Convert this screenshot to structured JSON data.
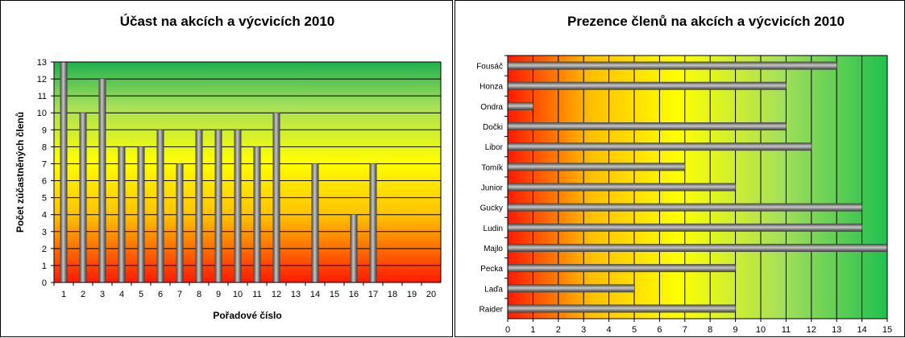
{
  "chart_data": [
    {
      "type": "bar",
      "orientation": "vertical",
      "title": "Účast na akcích a výcvicích 2010",
      "xlabel": "Pořadové číslo",
      "ylabel": "Počet zúčastněných členů",
      "categories": [
        "1",
        "2",
        "3",
        "4",
        "5",
        "6",
        "7",
        "8",
        "9",
        "10",
        "11",
        "12",
        "13",
        "14",
        "15",
        "16",
        "17",
        "18",
        "19",
        "20"
      ],
      "values": [
        13,
        10,
        12,
        8,
        8,
        9,
        7,
        9,
        9,
        9,
        8,
        10,
        null,
        7,
        null,
        4,
        7,
        null,
        null,
        null
      ],
      "ylim": [
        0,
        13
      ],
      "yticks": [
        0,
        1,
        2,
        3,
        4,
        5,
        6,
        7,
        8,
        9,
        10,
        11,
        12,
        13
      ],
      "grid": true,
      "background": "gradient red-yellow-green (bottom to top)"
    },
    {
      "type": "bar",
      "orientation": "horizontal",
      "title": "Prezence členů na akcích a výcvicích 2010",
      "categories": [
        "Fousáč",
        "Honza",
        "Ondra",
        "Dočki",
        "Libor",
        "Tomík",
        "Junior",
        "Gucky",
        "Ludin",
        "Majlo",
        "Pecka",
        "Laďa",
        "Raider"
      ],
      "values": [
        13,
        11,
        1,
        11,
        12,
        7,
        9,
        14,
        14,
        15,
        9,
        5,
        9
      ],
      "xlim": [
        0,
        15
      ],
      "xticks": [
        0,
        1,
        2,
        3,
        4,
        5,
        6,
        7,
        8,
        9,
        10,
        11,
        12,
        13,
        14,
        15
      ],
      "grid": true,
      "background": "gradient red-yellow-green (left to right)"
    }
  ]
}
